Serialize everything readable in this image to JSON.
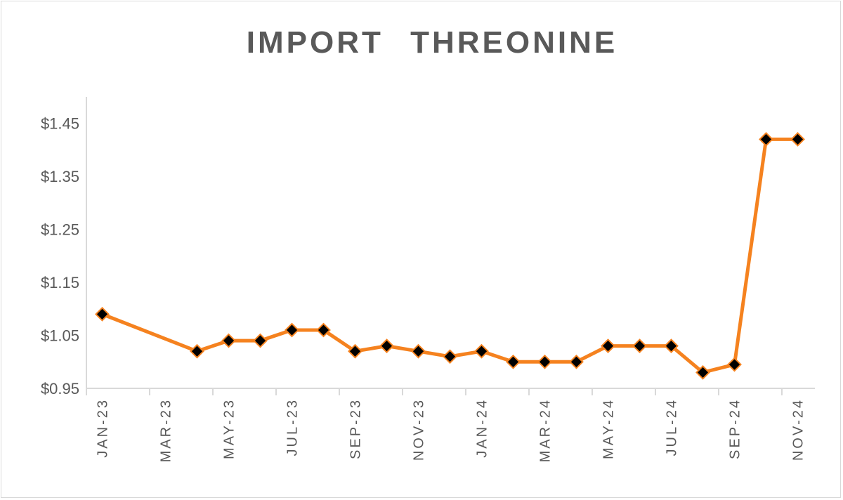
{
  "chart_data": {
    "type": "line",
    "title": "IMPORT   THREONINE",
    "xlabel": "",
    "ylabel": "",
    "x_tick_labels": [
      "JAN-23",
      "MAR-23",
      "MAY-23",
      "JUL-23",
      "SEP-23",
      "NOV-23",
      "JAN-24",
      "MAR-24",
      "MAY-24",
      "JUL-24",
      "SEP-24",
      "NOV-24"
    ],
    "y_tick_labels": [
      "$0.95",
      "$1.05",
      "$1.15",
      "$1.25",
      "$1.35",
      "$1.45"
    ],
    "y_ticks": [
      0.95,
      1.05,
      1.15,
      1.25,
      1.35,
      1.45
    ],
    "ylim": [
      0.95,
      1.5
    ],
    "x_months": [
      "JAN-23",
      "FEB-23",
      "MAR-23",
      "APR-23",
      "MAY-23",
      "JUN-23",
      "JUL-23",
      "AUG-23",
      "SEP-23",
      "OCT-23",
      "NOV-23",
      "DEC-23",
      "JAN-24",
      "FEB-24",
      "MAR-24",
      "APR-24",
      "MAY-24",
      "JUN-24",
      "JUL-24",
      "AUG-24",
      "SEP-24",
      "OCT-24",
      "NOV-24"
    ],
    "series": [
      {
        "points": [
          {
            "x": "JAN-23",
            "y": 1.09
          },
          {
            "x": "APR-23",
            "y": 1.02
          },
          {
            "x": "MAY-23",
            "y": 1.04
          },
          {
            "x": "JUN-23",
            "y": 1.04
          },
          {
            "x": "JUL-23",
            "y": 1.06
          },
          {
            "x": "AUG-23",
            "y": 1.06
          },
          {
            "x": "SEP-23",
            "y": 1.02
          },
          {
            "x": "OCT-23",
            "y": 1.03
          },
          {
            "x": "NOV-23",
            "y": 1.02
          },
          {
            "x": "DEC-23",
            "y": 1.01
          },
          {
            "x": "JAN-24",
            "y": 1.02
          },
          {
            "x": "FEB-24",
            "y": 1.0
          },
          {
            "x": "MAR-24",
            "y": 1.0
          },
          {
            "x": "APR-24",
            "y": 1.0
          },
          {
            "x": "MAY-24",
            "y": 1.03
          },
          {
            "x": "JUN-24",
            "y": 1.03
          },
          {
            "x": "JUL-24",
            "y": 1.03
          },
          {
            "x": "AUG-24",
            "y": 0.98
          },
          {
            "x": "SEP-24",
            "y": 0.995
          },
          {
            "x": "OCT-24",
            "y": 1.42
          },
          {
            "x": "NOV-24",
            "y": 1.42
          }
        ],
        "color": "#f5821f",
        "marker": "diamond",
        "marker_color": "#000000"
      }
    ],
    "grid": false,
    "legend": "none"
  }
}
